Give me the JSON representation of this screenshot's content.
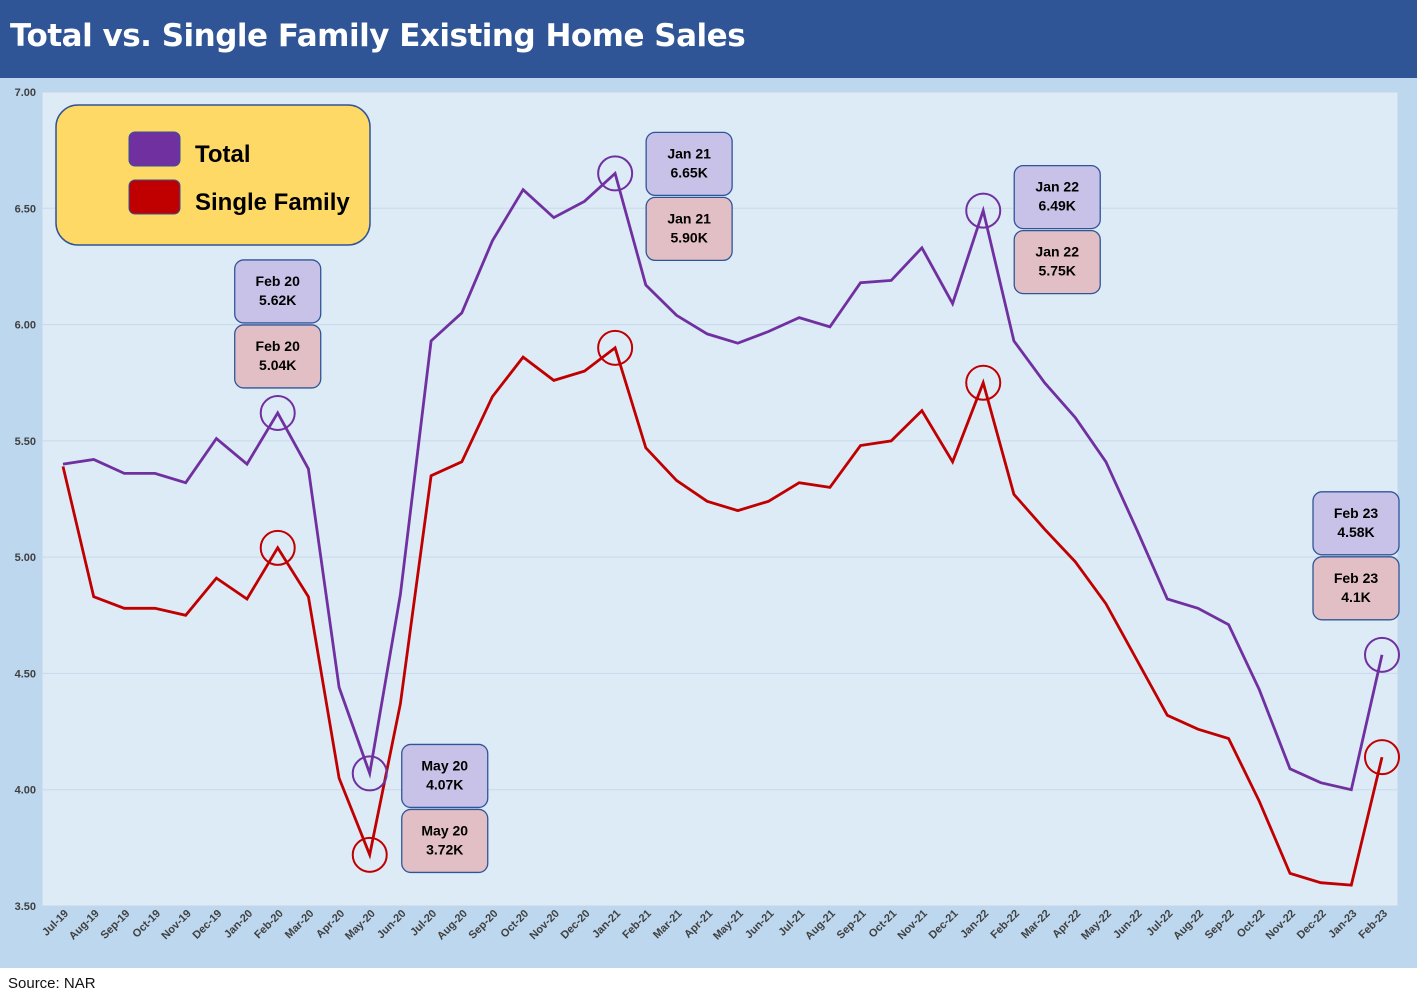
{
  "header": {
    "title": "Total vs. Single Family Existing Home Sales"
  },
  "footer": {
    "source": "Source: NAR"
  },
  "colors": {
    "total": "#7030A0",
    "single_family": "#C00000",
    "title_bar": "#2F5597",
    "plot_bg": "#DDEBF7",
    "legend_bg": "#FFD966",
    "total_callout": "#C9C2E8",
    "single_callout": "#E2BFC4"
  },
  "chart_data": {
    "type": "line",
    "title": "Total vs. Single Family Existing Home Sales",
    "xlabel": "",
    "ylabel": "",
    "ylim": [
      3.5,
      7.0
    ],
    "yticks": [
      "3.50",
      "4.00",
      "4.50",
      "5.00",
      "5.50",
      "6.00",
      "6.50",
      "7.00"
    ],
    "grid": "horizontal",
    "legend_position": "top-left",
    "categories": [
      "Jul-19",
      "Aug-19",
      "Sep-19",
      "Oct-19",
      "Nov-19",
      "Dec-19",
      "Jan-20",
      "Feb-20",
      "Mar-20",
      "Apr-20",
      "May-20",
      "Jun-20",
      "Jul-20",
      "Aug-20",
      "Sep-20",
      "Oct-20",
      "Nov-20",
      "Dec-20",
      "Jan-21",
      "Feb-21",
      "Mar-21",
      "Apr-21",
      "May-21",
      "Jun-21",
      "Jul-21",
      "Aug-21",
      "Sep-21",
      "Oct-21",
      "Nov-21",
      "Dec-21",
      "Jan-22",
      "Feb-22",
      "Mar-22",
      "Apr-22",
      "May-22",
      "Jun-22",
      "Jul-22",
      "Aug-22",
      "Sep-22",
      "Oct-22",
      "Nov-22",
      "Dec-22",
      "Jan-23",
      "Feb-23"
    ],
    "series": [
      {
        "name": "Total",
        "color": "#7030A0",
        "values": [
          5.4,
          5.42,
          5.36,
          5.36,
          5.32,
          5.51,
          5.4,
          5.62,
          5.38,
          4.44,
          4.07,
          4.84,
          5.93,
          6.05,
          6.36,
          6.58,
          6.46,
          6.53,
          6.65,
          6.17,
          6.04,
          5.96,
          5.92,
          5.97,
          6.03,
          5.99,
          6.18,
          6.19,
          6.33,
          6.09,
          6.49,
          5.93,
          5.75,
          5.6,
          5.41,
          5.12,
          4.82,
          4.78,
          4.71,
          4.43,
          4.09,
          4.03,
          4.0,
          4.58
        ]
      },
      {
        "name": "Single Family",
        "color": "#C00000",
        "values": [
          5.39,
          4.83,
          4.78,
          4.78,
          4.75,
          4.91,
          4.82,
          5.04,
          4.83,
          4.05,
          3.72,
          4.37,
          5.35,
          5.41,
          5.69,
          5.86,
          5.76,
          5.8,
          5.9,
          5.47,
          5.33,
          5.24,
          5.2,
          5.24,
          5.32,
          5.3,
          5.48,
          5.5,
          5.63,
          5.41,
          5.75,
          5.27,
          5.12,
          4.98,
          4.8,
          4.56,
          4.32,
          4.26,
          4.22,
          3.95,
          3.64,
          3.6,
          3.59,
          4.14
        ]
      }
    ],
    "annotations": [
      {
        "index": 7,
        "total_label": [
          "Feb 20",
          "5.62K"
        ],
        "single_label": [
          "Feb 20",
          "5.04K"
        ]
      },
      {
        "index": 10,
        "total_label": [
          "May 20",
          "4.07K"
        ],
        "single_label": [
          "May 20",
          "3.72K"
        ]
      },
      {
        "index": 18,
        "total_label": [
          "Jan 21",
          "6.65K"
        ],
        "single_label": [
          "Jan 21",
          "5.90K"
        ]
      },
      {
        "index": 30,
        "total_label": [
          "Jan 22",
          "6.49K"
        ],
        "single_label": [
          "Jan 22",
          "5.75K"
        ]
      },
      {
        "index": 43,
        "total_label": [
          "Feb 23",
          "4.58K"
        ],
        "single_label": [
          "Feb 23",
          "4.1K"
        ]
      }
    ]
  }
}
